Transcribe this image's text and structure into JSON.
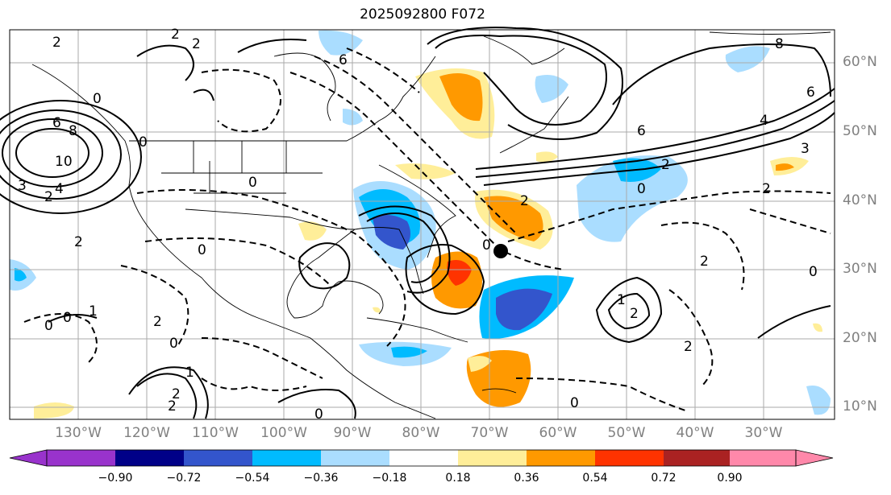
{
  "title": "2025092800 F072",
  "lat_labels": [
    "60°N",
    "50°N",
    "40°N",
    "30°N",
    "20°N",
    "10°N"
  ],
  "lon_labels": [
    "130°W",
    "120°W",
    "110°W",
    "100°W",
    "90°W",
    "80°W",
    "70°W",
    "60°W",
    "50°W",
    "40°W",
    "30°W"
  ],
  "colorbar": {
    "ticks": [
      "−0.90",
      "−0.72",
      "−0.54",
      "−0.36",
      "−0.18",
      "0.18",
      "0.36",
      "0.54",
      "0.72",
      "0.90"
    ],
    "colors": [
      "#9933cc",
      "#000088",
      "#3355cc",
      "#00bbff",
      "#aaddff",
      "#ffffff",
      "#ffee99",
      "#ff9900",
      "#ff3300",
      "#aa2222",
      "#ff88aa"
    ]
  },
  "contour_labels": [
    "2",
    "2",
    "2",
    "0",
    "6",
    "8",
    "6",
    "4",
    "0",
    "2",
    "6",
    "10",
    "8",
    "6",
    "4",
    "3",
    "2",
    "0",
    "0",
    "2",
    "0",
    "0",
    "2",
    "2",
    "1",
    "0",
    "0",
    "2",
    "1",
    "0",
    "2",
    "2",
    "1",
    "2",
    "2",
    "3",
    "2",
    "0",
    "0",
    "0"
  ],
  "colors": {
    "map_line": "#000000",
    "grid": "#999999",
    "label": "#808080"
  },
  "marker": "storm-center-dot"
}
